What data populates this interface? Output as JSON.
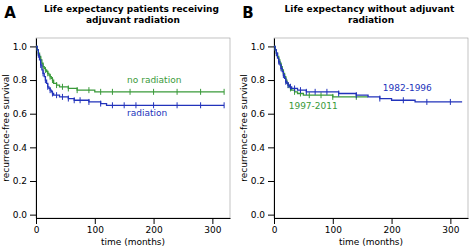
{
  "chart_data": [
    {
      "type": "step",
      "label": "A",
      "title": "Life expectancy patients receiving adjuvant radiation",
      "xlabel": "time (months)",
      "ylabel": "recurrence-free survival",
      "xlim": [
        0,
        330
      ],
      "ylim": [
        -0.02,
        1.05
      ],
      "xticks": [
        0,
        100,
        200,
        300
      ],
      "yticks": [
        {
          "value": 0.0,
          "label": "0.0"
        },
        0.2,
        0.4,
        0.6,
        0.8,
        {
          "value": 1.0,
          "label": "1.0"
        }
      ],
      "series": [
        {
          "color": "#3a9a3a",
          "marker": "tick",
          "x": [
            0,
            2,
            4,
            6,
            8,
            10,
            12,
            14,
            16,
            18,
            20,
            22,
            24,
            26,
            28,
            30,
            35,
            40,
            45,
            50,
            55,
            60,
            70,
            80,
            90,
            100,
            110,
            120,
            130,
            140,
            160,
            180,
            200,
            220,
            240,
            260,
            280,
            300,
            320
          ],
          "values": [
            1.0,
            0.98,
            0.96,
            0.94,
            0.92,
            0.9,
            0.88,
            0.87,
            0.86,
            0.85,
            0.84,
            0.83,
            0.82,
            0.81,
            0.8,
            0.78,
            0.77,
            0.76,
            0.76,
            0.76,
            0.75,
            0.75,
            0.74,
            0.74,
            0.74,
            0.73,
            0.73,
            0.73,
            0.73,
            0.73,
            0.73,
            0.73,
            0.73,
            0.73,
            0.73,
            0.73,
            0.73,
            0.73,
            0.73
          ]
        },
        {
          "color": "#2233bb",
          "marker": "tick",
          "x": [
            0,
            2,
            4,
            6,
            8,
            10,
            12,
            14,
            16,
            18,
            20,
            22,
            24,
            26,
            28,
            30,
            35,
            40,
            45,
            50,
            55,
            60,
            65,
            70,
            75,
            80,
            90,
            100,
            110,
            120,
            130,
            140,
            150,
            160,
            170,
            180,
            200,
            220,
            240,
            260,
            280,
            300,
            320
          ],
          "values": [
            1.0,
            0.98,
            0.95,
            0.92,
            0.89,
            0.86,
            0.84,
            0.82,
            0.8,
            0.78,
            0.76,
            0.75,
            0.74,
            0.73,
            0.72,
            0.71,
            0.71,
            0.7,
            0.7,
            0.7,
            0.69,
            0.69,
            0.68,
            0.68,
            0.68,
            0.68,
            0.67,
            0.67,
            0.66,
            0.65,
            0.65,
            0.65,
            0.65,
            0.65,
            0.65,
            0.65,
            0.65,
            0.65,
            0.65,
            0.65,
            0.65,
            0.65,
            0.65
          ]
        }
      ],
      "annotations": [
        {
          "text": "no radiation",
          "x": 155,
          "y": 0.8,
          "color": "#3a9a3a"
        },
        {
          "text": "radiation",
          "x": 155,
          "y": 0.6,
          "color": "#2233bb"
        }
      ]
    },
    {
      "type": "step",
      "label": "B",
      "title": "Life expectancy without adjuvant radiation",
      "xlabel": "time (months)",
      "ylabel": "recurrence-free survival",
      "xlim": [
        0,
        330
      ],
      "ylim": [
        -0.02,
        1.05
      ],
      "xticks": [
        0,
        100,
        200,
        300
      ],
      "yticks": [
        {
          "value": 0.0,
          "label": "0.0"
        },
        0.2,
        0.4,
        0.6,
        0.8,
        {
          "value": 1.0,
          "label": "1.0"
        }
      ],
      "series": [
        {
          "color": "#3a9a3a",
          "marker": "tick",
          "x": [
            0,
            2,
            4,
            6,
            8,
            10,
            12,
            14,
            16,
            18,
            20,
            22,
            24,
            26,
            28,
            30,
            35,
            40,
            45,
            50,
            60,
            70,
            80,
            90,
            100,
            120,
            140,
            160
          ],
          "values": [
            1.0,
            0.98,
            0.96,
            0.94,
            0.92,
            0.9,
            0.88,
            0.86,
            0.84,
            0.82,
            0.8,
            0.78,
            0.77,
            0.76,
            0.75,
            0.74,
            0.73,
            0.72,
            0.72,
            0.71,
            0.71,
            0.71,
            0.71,
            0.71,
            0.7,
            0.7,
            0.7,
            0.7
          ]
        },
        {
          "color": "#2233bb",
          "marker": "tick",
          "x": [
            0,
            2,
            4,
            6,
            8,
            10,
            12,
            14,
            16,
            18,
            20,
            22,
            24,
            26,
            28,
            30,
            35,
            40,
            45,
            50,
            55,
            60,
            70,
            80,
            90,
            100,
            110,
            120,
            140,
            160,
            180,
            200,
            220,
            240,
            260,
            280,
            300,
            320
          ],
          "values": [
            1.0,
            0.98,
            0.96,
            0.93,
            0.91,
            0.89,
            0.87,
            0.85,
            0.83,
            0.81,
            0.79,
            0.78,
            0.77,
            0.76,
            0.76,
            0.75,
            0.75,
            0.74,
            0.74,
            0.74,
            0.73,
            0.73,
            0.73,
            0.73,
            0.73,
            0.73,
            0.72,
            0.72,
            0.71,
            0.7,
            0.69,
            0.68,
            0.68,
            0.67,
            0.67,
            0.67,
            0.67,
            0.67
          ]
        }
      ],
      "annotations": [
        {
          "text": "1997-2011",
          "x": 25,
          "y": 0.64,
          "color": "#3a9a3a"
        },
        {
          "text": "1982-1996",
          "x": 185,
          "y": 0.75,
          "color": "#2233bb"
        }
      ]
    }
  ]
}
